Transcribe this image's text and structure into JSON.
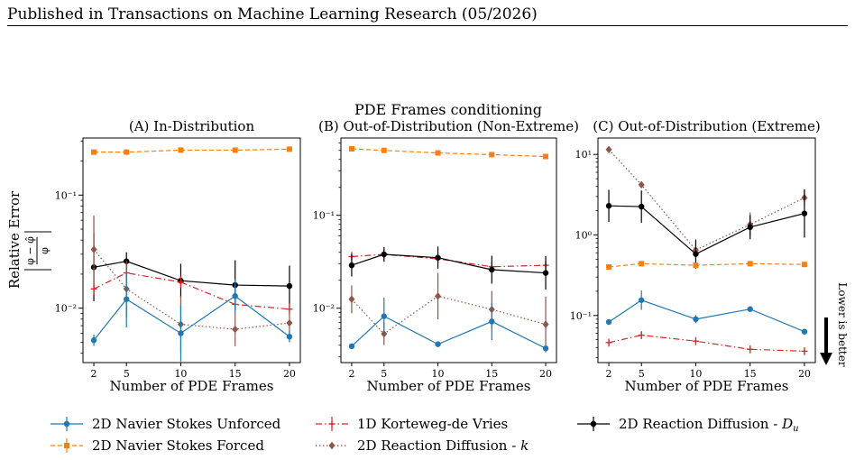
{
  "header": {
    "text": "Published in Transactions on Machine Learning Research (05/2026)"
  },
  "figure": {
    "suptitle": "PDE Frames conditioning",
    "ylabel_top": "Relative Error",
    "ylabel_formula": "|φ - φ̂| / φ",
    "lower_is_better": "Lower is better"
  },
  "legend": [
    {
      "name": "2D Navier Stokes Unforced",
      "color": "#1f77b4",
      "style": "solid",
      "marker": "circle"
    },
    {
      "name": "2D Navier Stokes Forced",
      "color": "#ff7f0e",
      "style": "dashed",
      "marker": "square"
    },
    {
      "name": "1D Korteweg-de Vries",
      "color": "#d62728",
      "style": "dashdot",
      "marker": "plus"
    },
    {
      "name": "2D Reaction Diffusion - k",
      "color": "#8c564b",
      "style": "dotted",
      "marker": "diamond"
    },
    {
      "name": "2D Reaction Diffusion - Du",
      "color": "#000000",
      "style": "solid",
      "marker": "circle"
    }
  ],
  "chart_data": [
    {
      "type": "line",
      "title": "(A) In-Distribution",
      "xlabel": "Number of PDE Frames",
      "x": [
        2,
        5,
        10,
        15,
        20
      ],
      "yscale": "log",
      "ylim": [
        0.0033,
        0.32
      ],
      "yticks": [
        {
          "v": 0.1,
          "label": "10^-1"
        },
        {
          "v": 0.01,
          "label": "10^-2"
        }
      ],
      "series": [
        {
          "name": "2D Navier Stokes Forced",
          "values": [
            0.24,
            0.24,
            0.25,
            0.25,
            0.255
          ],
          "err": [
            0.0,
            0.0,
            0.0,
            0.0,
            0.0
          ]
        },
        {
          "name": "2D Reaction Diffusion - Du",
          "values": [
            0.023,
            0.026,
            0.0175,
            0.016,
            0.0157
          ],
          "err": [
            0.3,
            0.08,
            0.15,
            0.22,
            0.18
          ]
        },
        {
          "name": "1D Korteweg-de Vries",
          "values": [
            0.0148,
            0.0205,
            0.017,
            0.0108,
            0.0098
          ],
          "err": [
            0.05,
            0.05,
            0.05,
            0.05,
            0.05
          ]
        },
        {
          "name": "2D Reaction Diffusion - k",
          "values": [
            0.033,
            0.0148,
            0.0072,
            0.0065,
            0.0074
          ],
          "err": [
            0.3,
            0.25,
            0.25,
            0.15,
            0.15
          ]
        },
        {
          "name": "2D Navier Stokes Unforced",
          "values": [
            0.0052,
            0.012,
            0.006,
            0.0128,
            0.0056
          ],
          "err": [
            0.05,
            0.25,
            0.25,
            0.15,
            0.05
          ]
        }
      ]
    },
    {
      "type": "line",
      "title": "(B) Out-of-Distribution (Non-Extreme)",
      "xlabel": "Number of PDE Frames",
      "x": [
        2,
        5,
        10,
        15,
        20
      ],
      "yscale": "log",
      "ylim": [
        0.0026,
        0.68
      ],
      "yticks": [
        {
          "v": 0.1,
          "label": "10^-1"
        },
        {
          "v": 0.01,
          "label": "10^-2"
        }
      ],
      "series": [
        {
          "name": "2D Navier Stokes Forced",
          "values": [
            0.52,
            0.5,
            0.47,
            0.45,
            0.43
          ],
          "err": [
            0.0,
            0.0,
            0.0,
            0.0,
            0.0
          ]
        },
        {
          "name": "1D Korteweg-de Vries",
          "values": [
            0.036,
            0.038,
            0.034,
            0.028,
            0.029
          ],
          "err": [
            0.05,
            0.05,
            0.05,
            0.05,
            0.05
          ]
        },
        {
          "name": "2D Reaction Diffusion - Du",
          "values": [
            0.029,
            0.038,
            0.035,
            0.026,
            0.024
          ],
          "err": [
            0.12,
            0.08,
            0.12,
            0.15,
            0.18
          ]
        },
        {
          "name": "2D Reaction Diffusion - k",
          "values": [
            0.0125,
            0.0053,
            0.0135,
            0.0097,
            0.0067
          ],
          "err": [
            0.15,
            0.12,
            0.25,
            0.2,
            0.3
          ]
        },
        {
          "name": "2D Navier Stokes Unforced",
          "values": [
            0.0039,
            0.0082,
            0.0041,
            0.0072,
            0.0037
          ],
          "err": [
            0.0,
            0.2,
            0.0,
            0.2,
            0.0
          ]
        }
      ]
    },
    {
      "type": "line",
      "title": "(C) Out-of-Distribution (Extreme)",
      "xlabel": "Number of PDE Frames",
      "x": [
        2,
        5,
        10,
        15,
        20
      ],
      "yscale": "log",
      "ylim": [
        0.026,
        16
      ],
      "yticks": [
        {
          "v": 10,
          "label": "10^1"
        },
        {
          "v": 1,
          "label": "10^0"
        },
        {
          "v": 0.1,
          "label": "10^-1"
        }
      ],
      "series": [
        {
          "name": "2D Reaction Diffusion - k",
          "values": [
            11.5,
            4.2,
            0.65,
            1.35,
            2.9
          ],
          "err": [
            0.0,
            0.0,
            0.1,
            0.15,
            0.1
          ]
        },
        {
          "name": "2D Reaction Diffusion - Du",
          "values": [
            2.3,
            2.25,
            0.58,
            1.25,
            1.85
          ],
          "err": [
            0.2,
            0.2,
            0.18,
            0.15,
            0.3
          ]
        },
        {
          "name": "2D Navier Stokes Forced",
          "values": [
            0.4,
            0.44,
            0.42,
            0.44,
            0.43
          ],
          "err": [
            0.0,
            0.0,
            0.0,
            0.0,
            0.0
          ]
        },
        {
          "name": "2D Navier Stokes Unforced",
          "values": [
            0.083,
            0.155,
            0.09,
            0.12,
            0.063
          ],
          "err": [
            0.0,
            0.12,
            0.05,
            0.0,
            0.0
          ]
        },
        {
          "name": "1D Korteweg-de Vries",
          "values": [
            0.046,
            0.057,
            0.048,
            0.038,
            0.036
          ],
          "err": [
            0.05,
            0.05,
            0.05,
            0.05,
            0.05
          ]
        }
      ]
    }
  ]
}
